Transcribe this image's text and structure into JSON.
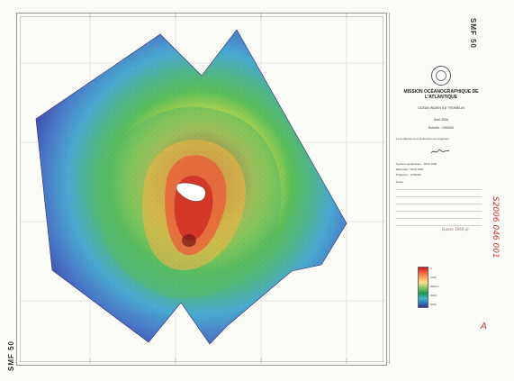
{
  "sheet": {
    "code": "SMF 50",
    "institution": "MISSION OCÉANOGRAPHIQUE DE L'ATLANTIQUE",
    "region": "OCÉAN INDIEN ÎLE TROMELIN",
    "date": "Avril 2006",
    "scale": "Échelle : 1/50000",
    "notes": [
      "Levé effectué sous la direction de l'ingénieur",
      "Système géodésique : WGS 1984",
      "Ellipsoïde : WGS 1984",
      "Projection : UTM(38)",
      "Notes"
    ]
  },
  "legend": {
    "labels": [
      "0",
      "1000",
      "2000 m",
      "3000",
      "4000"
    ],
    "colors": [
      "#d7191c",
      "#fdae61",
      "#66bd63",
      "#41b6c4",
      "#3b2e8e"
    ]
  },
  "annotations": {
    "side_ref": "S2006 046 001",
    "pencil_note": "(Lasso 1964 d)",
    "corner_mark": "A"
  }
}
